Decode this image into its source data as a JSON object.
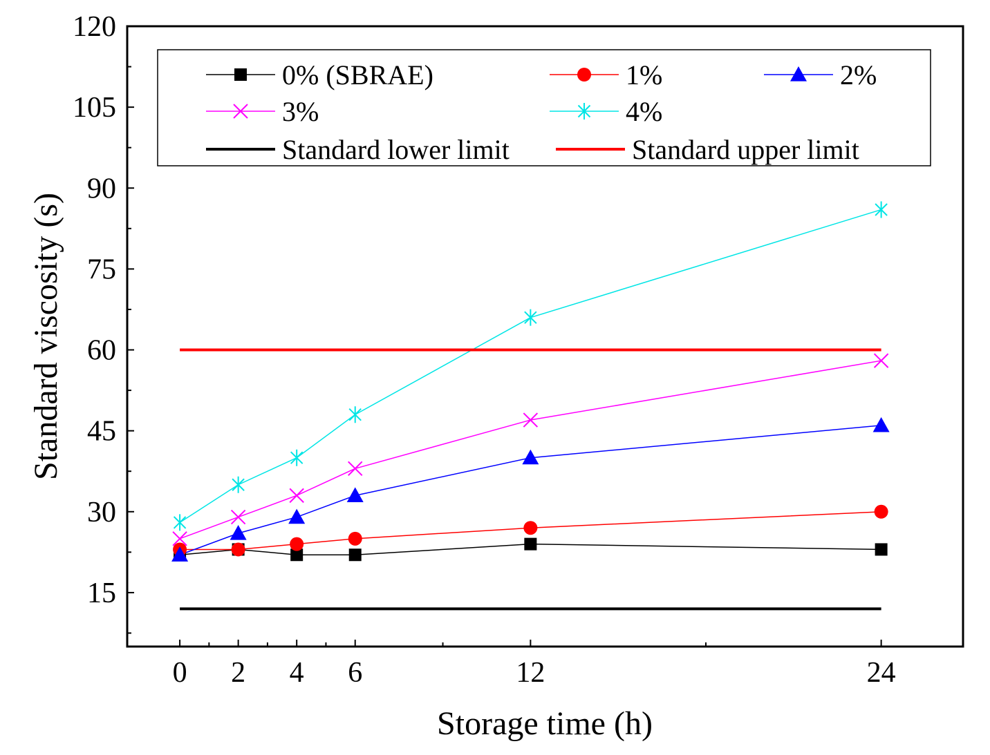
{
  "chart_data": {
    "type": "line",
    "title": "",
    "xlabel": "Storage time (h)",
    "ylabel": "Standard viscosity (s)",
    "x": [
      0,
      2,
      4,
      6,
      12,
      24
    ],
    "x_ticks": [
      0,
      2,
      4,
      6,
      12,
      24
    ],
    "xlim": [
      -1.8,
      26.8
    ],
    "ylim": [
      5,
      120
    ],
    "y_ticks": [
      15,
      30,
      45,
      60,
      75,
      90,
      105,
      120
    ],
    "grid": false,
    "legend_position": "top",
    "series": [
      {
        "name": "0% (SBRAE)",
        "color": "#000000",
        "marker": "square",
        "values": [
          22,
          23,
          22,
          22,
          24,
          23
        ]
      },
      {
        "name": "1%",
        "color": "#ff0000",
        "marker": "circle",
        "values": [
          23,
          23,
          24,
          25,
          27,
          30
        ]
      },
      {
        "name": "2%",
        "color": "#0000ff",
        "marker": "triangle",
        "values": [
          22,
          26,
          29,
          33,
          40,
          46
        ]
      },
      {
        "name": "3%",
        "color": "#ff00ff",
        "marker": "x",
        "values": [
          25,
          29,
          33,
          38,
          47,
          58
        ]
      },
      {
        "name": "4%",
        "color": "#00e5e5",
        "marker": "asterisk",
        "values": [
          28,
          35,
          40,
          48,
          66,
          86
        ]
      }
    ],
    "reference_lines": [
      {
        "name": "Standard lower limit",
        "color": "#000000",
        "value": 12,
        "x_range": [
          0,
          24
        ]
      },
      {
        "name": "Standard upper limit",
        "color": "#ff0000",
        "value": 60,
        "x_range": [
          0,
          24
        ]
      }
    ]
  }
}
